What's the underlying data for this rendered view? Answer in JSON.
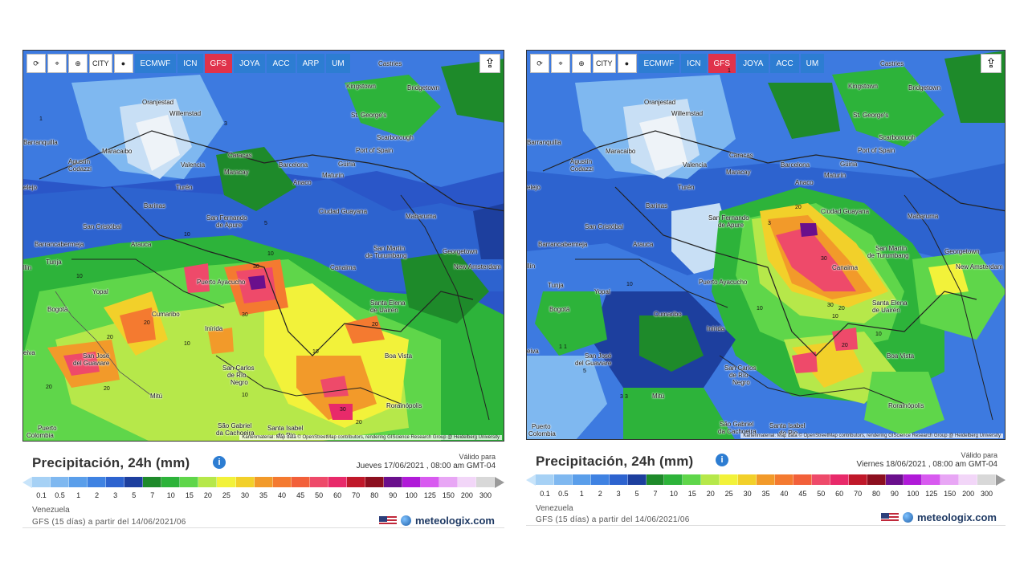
{
  "toolbar": {
    "refresh_icon": "refresh-icon",
    "marker_icon": "location-marker-icon",
    "zoom_icon": "zoom-icon",
    "city_label": "CITY",
    "dot_icon": "dot-icon",
    "share_icon": "share-icon"
  },
  "panels": [
    {
      "models": [
        "ECMWF",
        "ICN",
        "GFS",
        "JOYA",
        "ACC",
        "ARP",
        "UM"
      ],
      "active_model": "GFS",
      "attribution": "Kartenmaterial: Map data © OpenStreetMap contributors, rendering GIScience Research Group @ Heidelberg University",
      "legend_title": "Precipitación, 24h (mm)",
      "valid_label": "Válido para",
      "valid_date": "Jueves 17/06/2021 , 08:00 am GMT-04",
      "region": "Venezuela",
      "source": "GFS (15 días) a partir del 14/06/2021/06",
      "brand": "meteologix.com"
    },
    {
      "models": [
        "ECMWF",
        "ICN",
        "GFS",
        "JOYA",
        "ACC",
        "UM"
      ],
      "active_model": "GFS",
      "attribution": "Kartenmaterial: Map data © OpenStreetMap contributors, rendering GIScience Research Group @ Heidelberg University",
      "legend_title": "Precipitación, 24h (mm)",
      "valid_label": "Válido para",
      "valid_date": "Viernes 18/06/2021 , 08:00 am GMT-04",
      "region": "Venezuela",
      "source": "GFS (15 días) a partir del 14/06/2021/06",
      "brand": "meteologix.com"
    }
  ],
  "scale": {
    "ticks": [
      "0.1",
      "0.5",
      "1",
      "2",
      "3",
      "5",
      "7",
      "10",
      "15",
      "20",
      "25",
      "30",
      "35",
      "40",
      "45",
      "50",
      "60",
      "70",
      "80",
      "90",
      "100",
      "125",
      "150",
      "200",
      "300"
    ],
    "colors": [
      "#a6d1f5",
      "#7fb8f0",
      "#5a9eea",
      "#3f82e2",
      "#2d63cf",
      "#1d3f9e",
      "#1e8a2a",
      "#2db33a",
      "#5fd64a",
      "#b6e84a",
      "#f2f23a",
      "#f2d02a",
      "#f29a2a",
      "#f47a30",
      "#f2603a",
      "#ee4a6a",
      "#e82a6a",
      "#c0182a",
      "#8c0f1f",
      "#6a0f8c",
      "#b01ad8",
      "#d85af0",
      "#e8a6f5",
      "#f2d6f8",
      "#d8d8d8"
    ],
    "left_arrow_color": "#c8e4fa",
    "right_arrow_color": "#9a9a9a"
  },
  "map1": {
    "cities": [
      {
        "name": "Castries"
      },
      {
        "name": "Kingstown"
      },
      {
        "name": "Bridgetown"
      },
      {
        "name": "Oranjestad"
      },
      {
        "name": "Willemstad"
      },
      {
        "name": "St. George's"
      },
      {
        "name": "Scarborough"
      },
      {
        "name": "Port of Spain"
      },
      {
        "name": "Barranquilla"
      },
      {
        "name": "Maracaibo"
      },
      {
        "name": "Agustín"
      },
      {
        "name": "Codazzi"
      },
      {
        "name": "Caracas"
      },
      {
        "name": "Valencia"
      },
      {
        "name": "Maracay"
      },
      {
        "name": "Barcelona"
      },
      {
        "name": "Güiria"
      },
      {
        "name": "Maturín"
      },
      {
        "name": "Anaco"
      },
      {
        "name": "Turén"
      },
      {
        "name": "elejo"
      },
      {
        "name": "Barinas"
      },
      {
        "name": "San Fernando"
      },
      {
        "name": "de Apure"
      },
      {
        "name": "Ciudad Guayana"
      },
      {
        "name": "Mabaruma"
      },
      {
        "name": "San Cristóbal"
      },
      {
        "name": "Arauca"
      },
      {
        "name": "Barrancabermeja"
      },
      {
        "name": "San Martín"
      },
      {
        "name": "de Turumbang"
      },
      {
        "name": "Georgetown"
      },
      {
        "name": "Canaima"
      },
      {
        "name": "New Amsterdam"
      },
      {
        "name": "Puerto Ayacucho"
      },
      {
        "name": "Tunja"
      },
      {
        "name": "Yopal"
      },
      {
        "name": "Bogotá"
      },
      {
        "name": "Cumaribo"
      },
      {
        "name": "Santa Elena"
      },
      {
        "name": "de Uairén"
      },
      {
        "name": "Inírida"
      },
      {
        "name": "San José"
      },
      {
        "name": "del Guaviare"
      },
      {
        "name": "Boa Vista"
      },
      {
        "name": "San Carlos"
      },
      {
        "name": "de Río"
      },
      {
        "name": "Negro"
      },
      {
        "name": "Mitú"
      },
      {
        "name": "Rorainópolis"
      },
      {
        "name": "São Gabriel"
      },
      {
        "name": "da Cachoeira"
      },
      {
        "name": "Santa Isabel"
      },
      {
        "name": "do Rio"
      },
      {
        "name": "Puerto"
      },
      {
        "name": "Colombia"
      },
      {
        "name": "eiva"
      },
      {
        "name": "llín"
      }
    ],
    "contours": [
      "1",
      "3",
      "5",
      "10",
      "20",
      "30",
      "30",
      "20",
      "10",
      "10",
      "20",
      "10",
      "20",
      "30",
      "20",
      "10",
      "20",
      "10"
    ]
  },
  "map2": {
    "cities": [
      {
        "name": "Castries"
      },
      {
        "name": "Kingstown"
      },
      {
        "name": "Bridgetown"
      },
      {
        "name": "Oranjestad"
      },
      {
        "name": "Willemstad"
      },
      {
        "name": "St. George's"
      },
      {
        "name": "Scarborough"
      },
      {
        "name": "Port of Spain"
      },
      {
        "name": "Barranquilla"
      },
      {
        "name": "Maracaibo"
      },
      {
        "name": "Agustín"
      },
      {
        "name": "Codazzi"
      },
      {
        "name": "Caracas"
      },
      {
        "name": "Valencia"
      },
      {
        "name": "Maracay"
      },
      {
        "name": "Barcelona"
      },
      {
        "name": "Güiria"
      },
      {
        "name": "Maturín"
      },
      {
        "name": "Anaco"
      },
      {
        "name": "Turén"
      },
      {
        "name": "elejo"
      },
      {
        "name": "Barinas"
      },
      {
        "name": "San Fernando"
      },
      {
        "name": "de Apure"
      },
      {
        "name": "Ciudad Guayana"
      },
      {
        "name": "Mabaruma"
      },
      {
        "name": "San Cristóbal"
      },
      {
        "name": "Arauca"
      },
      {
        "name": "Barrancabermeja"
      },
      {
        "name": "San Martín"
      },
      {
        "name": "de Turumbang"
      },
      {
        "name": "Georgetown"
      },
      {
        "name": "Canaima"
      },
      {
        "name": "New Amsterdam"
      },
      {
        "name": "Puerto Ayacucho"
      },
      {
        "name": "Tunja"
      },
      {
        "name": "Yopal"
      },
      {
        "name": "Bogotá"
      },
      {
        "name": "Cumaribo"
      },
      {
        "name": "Santa Elena"
      },
      {
        "name": "de Uairén"
      },
      {
        "name": "Inírida"
      },
      {
        "name": "San José"
      },
      {
        "name": "del Guaviare"
      },
      {
        "name": "Boa Vista"
      },
      {
        "name": "San Carlos"
      },
      {
        "name": "de Río"
      },
      {
        "name": "Negro"
      },
      {
        "name": "Mitú"
      },
      {
        "name": "Rorainópolis"
      },
      {
        "name": "São Gabriel"
      },
      {
        "name": "da Cachoeira"
      },
      {
        "name": "Santa Isabel"
      },
      {
        "name": "do Rio"
      },
      {
        "name": "Puerto"
      },
      {
        "name": "Colombia"
      },
      {
        "name": "eiva"
      },
      {
        "name": "llín"
      }
    ],
    "contours": [
      "1",
      "3",
      "1",
      "3",
      "20",
      "30",
      "10",
      "30",
      "20",
      "10",
      "10",
      "20",
      "10",
      "1",
      "3",
      "5"
    ]
  }
}
